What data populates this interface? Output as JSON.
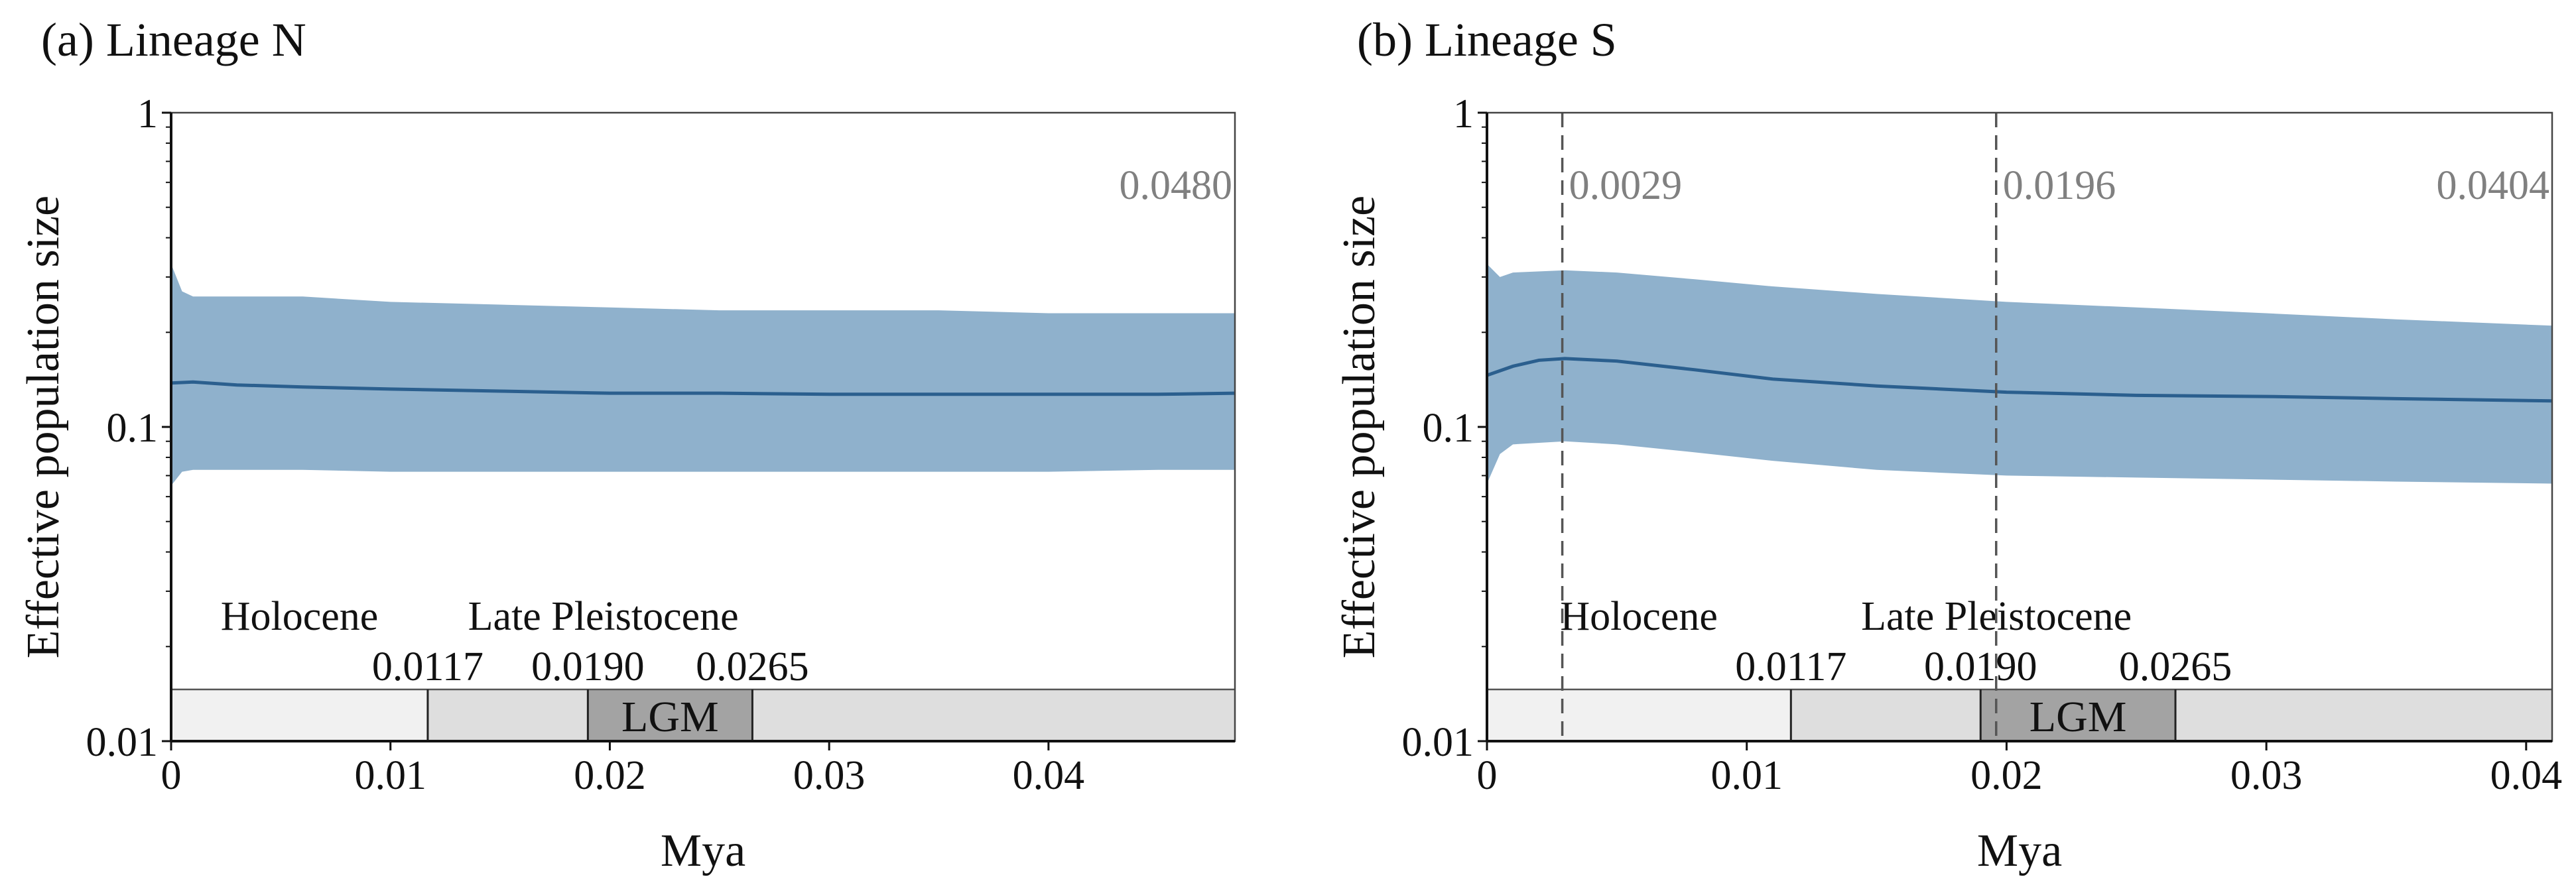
{
  "chart_data": [
    {
      "type": "area",
      "panel_title": "(a) Lineage N",
      "xlabel": "Mya",
      "ylabel": "Effective population size",
      "yscale": "log",
      "xlim": [
        0,
        0.0485
      ],
      "ylim": [
        0.01,
        1
      ],
      "xticks": [
        0,
        0.01,
        0.02,
        0.03,
        0.04
      ],
      "xtick_labels": [
        "0",
        "0.01",
        "0.02",
        "0.03",
        "0.04"
      ],
      "yticks": [
        0.01,
        0.1,
        1
      ],
      "ytick_labels": [
        "0.01",
        "0.1",
        "1"
      ],
      "median": {
        "x": [
          0,
          0.001,
          0.003,
          0.006,
          0.01,
          0.015,
          0.02,
          0.025,
          0.03,
          0.035,
          0.04,
          0.045,
          0.0485
        ],
        "y": [
          0.138,
          0.139,
          0.136,
          0.134,
          0.132,
          0.13,
          0.128,
          0.128,
          0.127,
          0.127,
          0.127,
          0.127,
          0.128
        ]
      },
      "hpd_upper": {
        "x": [
          0,
          0.0005,
          0.001,
          0.003,
          0.006,
          0.01,
          0.015,
          0.02,
          0.025,
          0.03,
          0.035,
          0.04,
          0.045,
          0.0485
        ],
        "y": [
          0.33,
          0.27,
          0.26,
          0.26,
          0.26,
          0.25,
          0.245,
          0.24,
          0.235,
          0.235,
          0.235,
          0.23,
          0.23,
          0.23
        ]
      },
      "hpd_lower": {
        "x": [
          0,
          0.0005,
          0.001,
          0.003,
          0.006,
          0.01,
          0.015,
          0.02,
          0.025,
          0.03,
          0.035,
          0.04,
          0.045,
          0.0485
        ],
        "y": [
          0.065,
          0.072,
          0.073,
          0.073,
          0.073,
          0.072,
          0.072,
          0.072,
          0.072,
          0.072,
          0.072,
          0.072,
          0.073,
          0.073
        ]
      },
      "annotations": [
        {
          "text": "0.0480",
          "x": 0.048
        }
      ],
      "epochs": {
        "holocene_label": "Holocene",
        "late_pleistocene_label": "Late Pleistocene",
        "lgm_label": "LGM",
        "boundaries": [
          0.0117,
          0.019,
          0.0265
        ],
        "boundary_labels": [
          "0.0117",
          "0.0190",
          "0.0265"
        ],
        "holocene_color": "#f1f1f1",
        "pleistocene_color": "#dedede",
        "lgm_color": "#a3a3a3"
      },
      "band_color": "#8fb1cc",
      "line_color": "#2b5f8e"
    },
    {
      "type": "area",
      "panel_title": "(b) Lineage S",
      "xlabel": "Mya",
      "ylabel": "Effective population size",
      "yscale": "log",
      "xlim": [
        0,
        0.041
      ],
      "ylim": [
        0.01,
        1
      ],
      "xticks": [
        0,
        0.01,
        0.02,
        0.03,
        0.04
      ],
      "xtick_labels": [
        "0",
        "0.01",
        "0.02",
        "0.03",
        "0.04"
      ],
      "yticks": [
        0.01,
        0.1,
        1
      ],
      "ytick_labels": [
        "0.01",
        "0.1",
        "1"
      ],
      "median": {
        "x": [
          0,
          0.001,
          0.002,
          0.003,
          0.005,
          0.008,
          0.011,
          0.015,
          0.02,
          0.025,
          0.03,
          0.035,
          0.041
        ],
        "y": [
          0.146,
          0.156,
          0.163,
          0.165,
          0.162,
          0.152,
          0.142,
          0.135,
          0.129,
          0.126,
          0.125,
          0.123,
          0.121
        ]
      },
      "hpd_upper": {
        "x": [
          0,
          0.0005,
          0.001,
          0.003,
          0.005,
          0.008,
          0.011,
          0.015,
          0.02,
          0.025,
          0.03,
          0.035,
          0.041
        ],
        "y": [
          0.33,
          0.3,
          0.31,
          0.315,
          0.31,
          0.295,
          0.28,
          0.265,
          0.25,
          0.24,
          0.23,
          0.22,
          0.21
        ]
      },
      "hpd_lower": {
        "x": [
          0,
          0.0005,
          0.001,
          0.003,
          0.005,
          0.008,
          0.011,
          0.015,
          0.02,
          0.025,
          0.03,
          0.035,
          0.041
        ],
        "y": [
          0.066,
          0.082,
          0.088,
          0.09,
          0.088,
          0.083,
          0.078,
          0.073,
          0.07,
          0.069,
          0.068,
          0.067,
          0.066
        ]
      },
      "annotations": [
        {
          "text": "0.0029",
          "x": 0.0029,
          "dashed_line": true
        },
        {
          "text": "0.0196",
          "x": 0.0196,
          "dashed_line": true
        },
        {
          "text": "0.0404",
          "x": 0.0404
        }
      ],
      "epochs": {
        "holocene_label": "Holocene",
        "late_pleistocene_label": "Late Pleistocene",
        "lgm_label": "LGM",
        "boundaries": [
          0.0117,
          0.019,
          0.0265
        ],
        "boundary_labels": [
          "0.0117",
          "0.0190",
          "0.0265"
        ],
        "holocene_color": "#f1f1f1",
        "pleistocene_color": "#dedede",
        "lgm_color": "#a3a3a3"
      },
      "band_color": "#8fb1cc",
      "line_color": "#2b5f8e"
    }
  ]
}
